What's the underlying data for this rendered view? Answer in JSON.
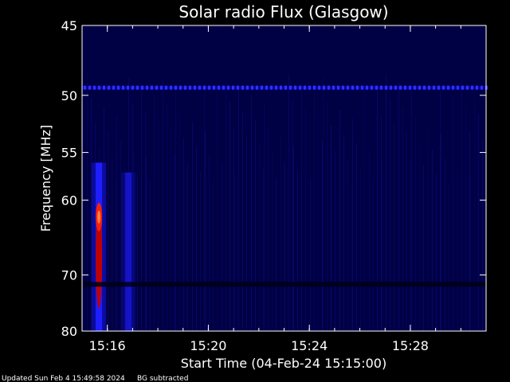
{
  "chart_data": {
    "type": "heatmap",
    "title": "Solar radio Flux (Glasgow)",
    "xlabel": "Start Time (04-Feb-24 15:15:00)",
    "ylabel": "Frequency [MHz]",
    "x_start": "15:15:00",
    "x_end": "15:31:00",
    "x_ticks": [
      "15:16",
      "15:20",
      "15:24",
      "15:28"
    ],
    "x_tick_minutes": [
      16,
      20,
      24,
      28
    ],
    "y_ticks": [
      "45",
      "50",
      "55",
      "60",
      "70",
      "80"
    ],
    "y_tick_values": [
      45,
      50,
      55,
      60,
      70,
      80
    ],
    "ylim": [
      45,
      80
    ],
    "y_scale": "reciprocal",
    "colors": {
      "background": "#000000",
      "axes": "#ffffff",
      "low": "#000044",
      "mid": "#1e1eff",
      "high": "#ff2000"
    },
    "features": [
      {
        "kind": "interference_line",
        "freq_mhz": 49.4
      },
      {
        "kind": "burst",
        "time": "15:15:40",
        "freq_range_mhz": [
          56,
          80
        ],
        "peak_mhz": 62
      },
      {
        "kind": "burst",
        "time": "15:16:50",
        "freq_range_mhz": [
          57,
          80
        ],
        "peak_mhz": 68
      },
      {
        "kind": "gap",
        "freq_mhz": 71.5
      }
    ]
  },
  "footer": {
    "updated": "Updated Sun Feb  4 15:49:58 2024",
    "note": "BG subtracted"
  }
}
